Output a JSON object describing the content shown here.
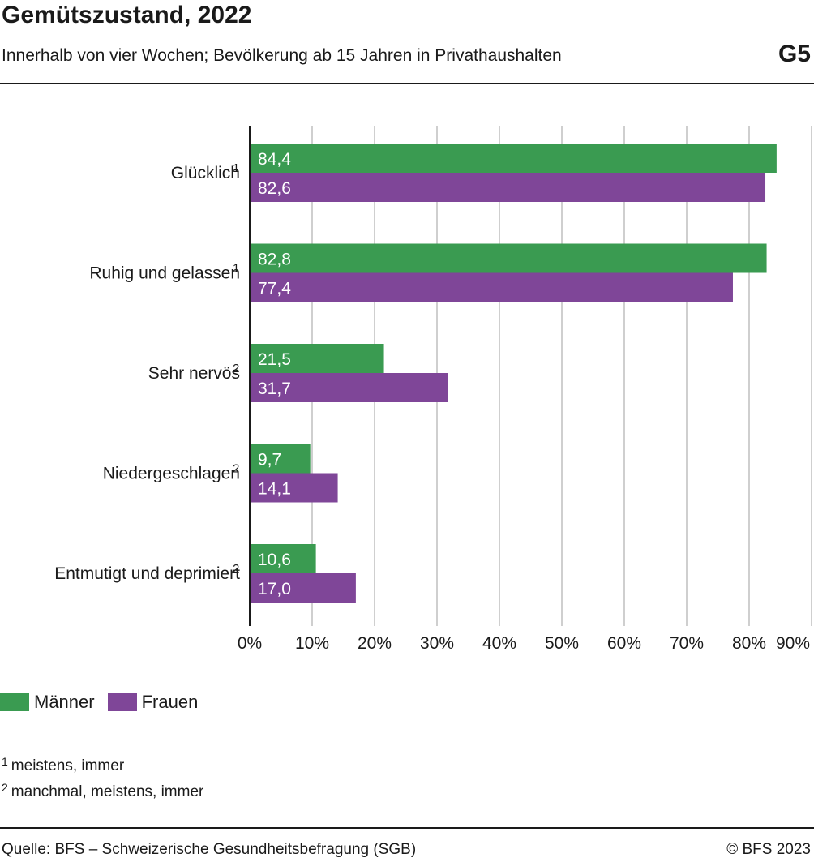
{
  "header": {
    "title": "Gemütszustand, 2022",
    "subtitle": "Innerhalb von vier Wochen; Bevölkerung ab 15 Jahren in Privathaushalten",
    "figure_number": "G5"
  },
  "chart_data": {
    "type": "bar",
    "orientation": "horizontal",
    "title": "Gemütszustand, 2022",
    "subtitle": "Innerhalb von vier Wochen; Bevölkerung ab 15 Jahren in Privathaushalten",
    "categories": [
      "Glücklich",
      "Ruhig und gelassen",
      "Sehr nervös",
      "Niedergeschlagen",
      "Entmutigt und deprimiert"
    ],
    "category_footnotes": [
      "1",
      "1",
      "2",
      "2",
      "2"
    ],
    "series": [
      {
        "name": "Männer",
        "color": "#3a9b51",
        "values": [
          84.4,
          82.8,
          21.5,
          9.7,
          10.6
        ],
        "labels": [
          "84,4",
          "82,8",
          "21,5",
          "9,7",
          "10,6"
        ]
      },
      {
        "name": "Frauen",
        "color": "#7f4698",
        "values": [
          82.6,
          77.4,
          31.7,
          14.1,
          17.0
        ],
        "labels": [
          "82,6",
          "77,4",
          "31,7",
          "14,1",
          "17,0"
        ]
      }
    ],
    "xlim": [
      0,
      90
    ],
    "x_ticks": [
      "0%",
      "10%",
      "20%",
      "30%",
      "40%",
      "50%",
      "60%",
      "70%",
      "80%",
      "90%"
    ],
    "grid": true,
    "legend_position": "bottom-left"
  },
  "legend": {
    "men": "Männer",
    "women": "Frauen"
  },
  "footnotes": [
    {
      "num": "1",
      "text": "meistens, immer"
    },
    {
      "num": "2",
      "text": "manchmal, meistens, immer"
    }
  ],
  "footer": {
    "source": "Quelle: BFS – Schweizerische Gesundheitsbefragung (SGB)",
    "copyright": "© BFS 2023"
  }
}
